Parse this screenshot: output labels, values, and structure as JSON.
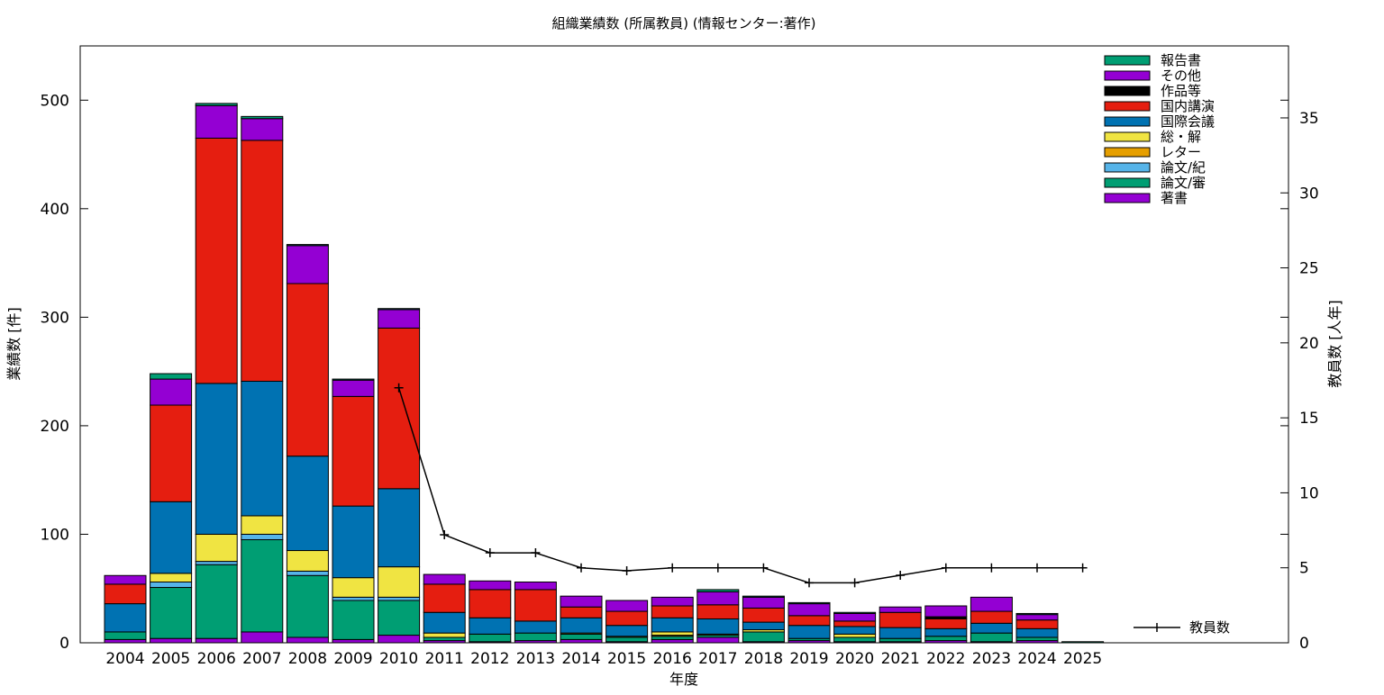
{
  "chart_data": {
    "type": "bar",
    "stacked": true,
    "title": "組織業績数 (所属教員) (情報センター:著作)",
    "xlabel": "年度",
    "ylabel": "業績数 [件]",
    "y2label": "教員数 [人年]",
    "ylim": [
      0,
      550
    ],
    "y2lim": [
      0,
      39.8
    ],
    "yticks": [
      0,
      100,
      200,
      300,
      400,
      500
    ],
    "y2ticks": [
      0,
      5,
      10,
      15,
      20,
      25,
      30,
      35
    ],
    "grid": false,
    "legend_position": "top-right",
    "categories": [
      "2004",
      "2005",
      "2006",
      "2007",
      "2008",
      "2009",
      "2010",
      "2011",
      "2012",
      "2013",
      "2014",
      "2015",
      "2016",
      "2017",
      "2018",
      "2019",
      "2020",
      "2021",
      "2022",
      "2023",
      "2024",
      "2025"
    ],
    "series": [
      {
        "name": "著書",
        "color": "#9400d3",
        "values": [
          3,
          4,
          4,
          10,
          5,
          3,
          7,
          2,
          1,
          2,
          3,
          1,
          3,
          5,
          1,
          2,
          1,
          1,
          2,
          1,
          2,
          0
        ]
      },
      {
        "name": "論文/審",
        "color": "#009e73",
        "values": [
          7,
          47,
          68,
          85,
          57,
          36,
          32,
          3,
          7,
          7,
          5,
          4,
          3,
          2,
          9,
          2,
          4,
          3,
          4,
          8,
          3,
          0
        ]
      },
      {
        "name": "論文/紀",
        "color": "#56b4e9",
        "values": [
          0,
          5,
          3,
          5,
          4,
          3,
          3,
          0,
          0,
          0,
          0,
          0,
          0,
          0,
          0,
          0,
          0,
          0,
          0,
          0,
          0,
          0
        ]
      },
      {
        "name": "レター",
        "color": "#e69f00",
        "values": [
          0,
          0,
          0,
          0,
          0,
          0,
          0,
          0,
          0,
          0,
          0,
          0,
          1,
          0,
          0,
          0,
          0,
          0,
          0,
          0,
          0,
          0
        ]
      },
      {
        "name": "総・解",
        "color": "#f0e442",
        "values": [
          0,
          8,
          25,
          17,
          19,
          18,
          28,
          4,
          0,
          0,
          1,
          1,
          3,
          1,
          2,
          0,
          3,
          0,
          0,
          0,
          0,
          0
        ]
      },
      {
        "name": "国際会議",
        "color": "#0072b2",
        "values": [
          26,
          66,
          139,
          124,
          87,
          66,
          72,
          19,
          15,
          11,
          14,
          10,
          13,
          14,
          7,
          12,
          7,
          10,
          7,
          9,
          8,
          0
        ]
      },
      {
        "name": "国内講演",
        "color": "#e51e10",
        "values": [
          18,
          89,
          226,
          222,
          159,
          101,
          148,
          26,
          26,
          29,
          10,
          13,
          11,
          13,
          13,
          9,
          5,
          14,
          9,
          11,
          8,
          0
        ]
      },
      {
        "name": "作品等",
        "color": "#000000",
        "values": [
          0,
          0,
          0,
          0,
          0,
          0,
          0,
          0,
          0,
          0,
          0,
          0,
          0,
          0,
          0,
          0,
          0,
          0,
          2,
          0,
          0,
          0
        ]
      },
      {
        "name": "その他",
        "color": "#9400d3",
        "values": [
          8,
          24,
          30,
          20,
          35,
          15,
          17,
          9,
          8,
          7,
          10,
          10,
          8,
          12,
          10,
          11,
          7,
          5,
          10,
          13,
          5,
          0
        ]
      },
      {
        "name": "報告書",
        "color": "#009e73",
        "values": [
          0,
          5,
          2,
          2,
          1,
          1,
          1,
          0,
          0,
          0,
          0,
          0,
          0,
          2,
          1,
          1,
          1,
          0,
          0,
          0,
          1,
          1
        ]
      }
    ],
    "line_series": {
      "name": "教員数",
      "axis": "y2",
      "start_category": "2010",
      "values": [
        17.0,
        7.2,
        6.0,
        6.0,
        5.0,
        4.8,
        5.0,
        5.0,
        5.0,
        4.0,
        4.0,
        4.5,
        5.0,
        5.0,
        5.0,
        5.0
      ]
    }
  }
}
